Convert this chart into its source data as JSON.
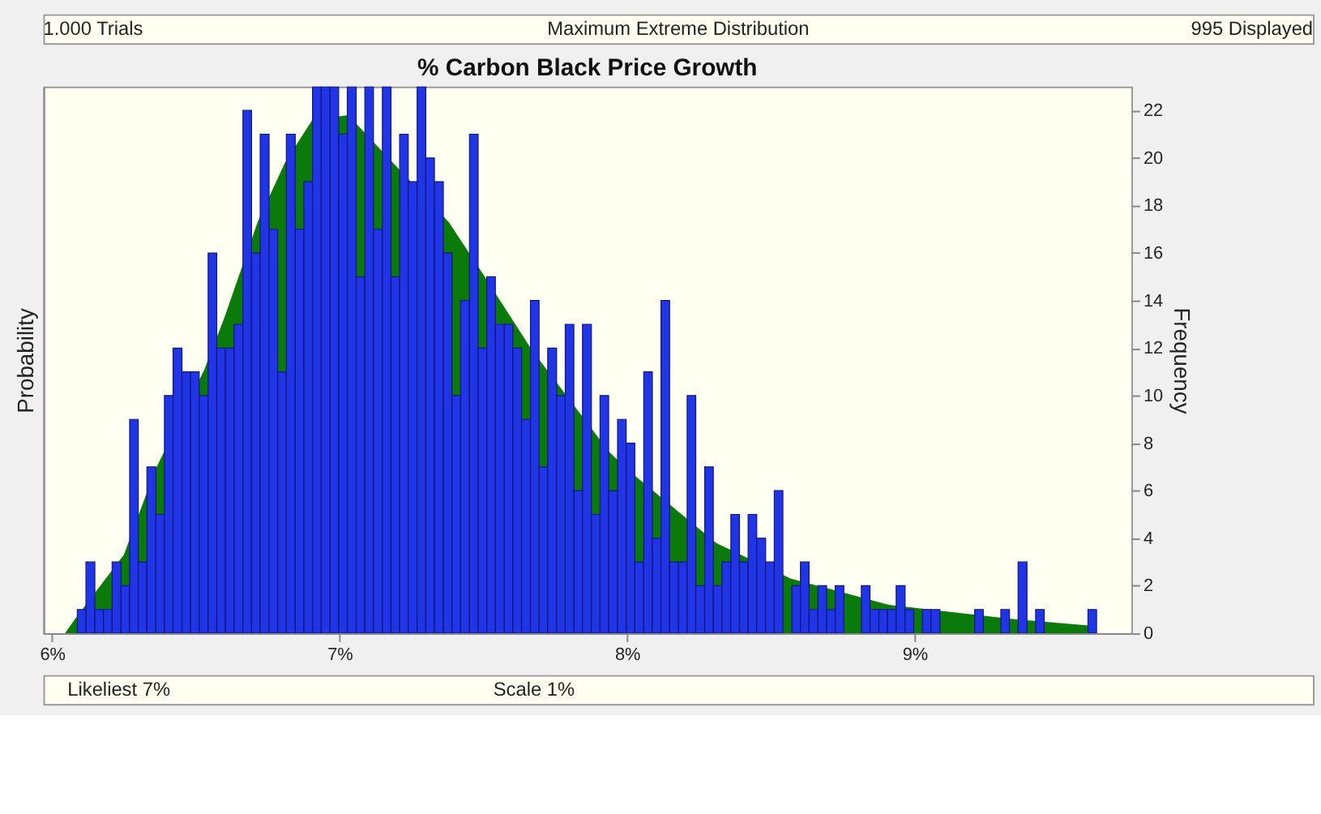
{
  "chart_data": {
    "type": "histogram",
    "title": "% Carbon Black Price Growth",
    "ylabel": "Probability",
    "y2label": "Frequency",
    "xlim": [
      5.97,
      9.754
    ],
    "xticks": [
      {
        "value": 6,
        "label": "6%"
      },
      {
        "value": 7,
        "label": "7%"
      },
      {
        "value": 8,
        "label": "8%"
      },
      {
        "value": 9,
        "label": "9%"
      }
    ],
    "y2lim": [
      0,
      23
    ],
    "y2ticks": [
      0,
      2,
      4,
      6,
      8,
      10,
      12,
      14,
      16,
      18,
      20,
      22
    ],
    "grid": false,
    "annotations": [
      "1.000 Trials",
      "Maximum Extreme Distribution",
      "995 Displayed",
      "Likeliest 7%",
      "Scale 1%"
    ],
    "series": [
      {
        "type": "area",
        "axis": "y2",
        "color": "#0a7a0a",
        "x": [
          6.045,
          6.08,
          6.25,
          6.36,
          6.53,
          6.6,
          6.715,
          6.81,
          6.905,
          7.03,
          7.38,
          7.5,
          7.67,
          7.94,
          8.03,
          8.31,
          8.57,
          8.91,
          9.34,
          9.63
        ],
        "values": [
          0,
          0.6,
          3.3,
          6.9,
          11.1,
          13.3,
          17.3,
          19.8,
          21.6,
          21.8,
          17.3,
          15.1,
          11.9,
          7.6,
          6.6,
          3.8,
          2.3,
          1.2,
          0.6,
          0.3
        ]
      },
      {
        "type": "histogram",
        "axis": "y2",
        "color": "#1f35e6",
        "bins": [
          6.088,
          6.118,
          6.149,
          6.179,
          6.209,
          6.24,
          6.27,
          6.3,
          6.33,
          6.361,
          6.391,
          6.421,
          6.452,
          6.482,
          6.512,
          6.543,
          6.573,
          6.603,
          6.633,
          6.664,
          6.694,
          6.724,
          6.755,
          6.785,
          6.815,
          6.846,
          6.876,
          6.906,
          6.936,
          6.967,
          6.997,
          7.027,
          7.058,
          7.088,
          7.118,
          7.149,
          7.179,
          7.209,
          7.239,
          7.27,
          7.3,
          7.33,
          7.361,
          7.391,
          7.421,
          7.452,
          7.482,
          7.512,
          7.542,
          7.573,
          7.603,
          7.633,
          7.664,
          7.694,
          7.724,
          7.755,
          7.785,
          7.815,
          7.845,
          7.876,
          7.906,
          7.936,
          7.967,
          7.997,
          8.027,
          8.058,
          8.088,
          8.118,
          8.148,
          8.179,
          8.209,
          8.239,
          8.27,
          8.3,
          8.33,
          8.361,
          8.391,
          8.421,
          8.451,
          8.482,
          8.512,
          8.542,
          8.573,
          8.603,
          8.633,
          8.664,
          8.694,
          8.724,
          8.754,
          8.785,
          8.815,
          8.845,
          8.876,
          8.906,
          8.936,
          8.967,
          8.997,
          9.027,
          9.057,
          9.088,
          9.118,
          9.148,
          9.179,
          9.209,
          9.239,
          9.27,
          9.3,
          9.33,
          9.36,
          9.391,
          9.421,
          9.451,
          9.482,
          9.512,
          9.542,
          9.573,
          9.603,
          9.633
        ],
        "values": [
          1,
          3,
          1,
          1,
          3,
          2,
          9,
          3,
          7,
          5,
          10,
          12,
          11,
          11,
          10,
          16,
          12,
          12,
          13,
          22,
          16,
          21,
          17,
          11,
          21,
          17,
          19,
          23,
          23,
          23,
          21,
          23,
          15,
          23,
          17,
          23,
          15,
          21,
          19,
          23,
          20,
          19,
          16,
          10,
          14,
          21,
          12,
          15,
          13,
          13,
          12,
          9,
          14,
          7,
          12,
          10,
          13,
          6,
          13,
          5,
          10,
          6,
          9,
          8,
          3,
          11,
          4,
          14,
          3,
          3,
          10,
          2,
          7,
          2,
          3,
          5,
          3,
          5,
          4,
          3,
          6,
          0,
          2,
          3,
          1,
          2,
          1,
          2,
          0,
          0,
          2,
          1,
          1,
          1,
          2,
          1,
          0,
          1,
          1,
          0,
          0,
          0,
          0,
          1,
          0,
          0,
          1,
          0,
          3,
          0,
          1,
          0,
          0,
          0,
          0,
          0,
          1
        ]
      }
    ]
  }
}
